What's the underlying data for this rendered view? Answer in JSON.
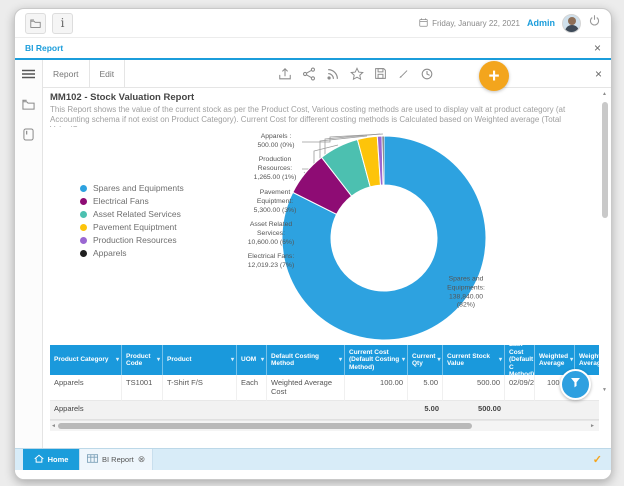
{
  "topbar": {
    "date": "Friday, January 22, 2021",
    "user": "Admin"
  },
  "tab": {
    "title": "BI Report"
  },
  "toolbar": {
    "report": "Report",
    "edit": "Edit"
  },
  "report": {
    "title": "MM102 - Stock Valuation Report",
    "description": "This Report shows the value of the current stock as per the Product Cost,  Various costing methods are used to display valt at product category (at Accounting schema if not exist on Product Category). Current Cost for different costing methods is Calculated based on Weighted average (Total Value/Curr"
  },
  "chart_data": {
    "type": "pie",
    "donut": true,
    "title": "",
    "legend_position": "left",
    "series": [
      {
        "name": "Spares and Equipments",
        "value": 138840.0,
        "percent": "82%",
        "color": "#2da2e0",
        "label": "Spares and\nEquipments:\n138,840.00\n(82%)"
      },
      {
        "name": "Electrical Fans",
        "value": 12019.23,
        "percent": "7%",
        "color": "#8e0c74",
        "label": "Electrical Fans:\n12,019.23 (7%)"
      },
      {
        "name": "Asset Related Services",
        "value": 10600.0,
        "percent": "6%",
        "color": "#4cc0b0",
        "label": "Asset Related\nServices:\n10,600.00 (6%)"
      },
      {
        "name": "Pavement Equiptment",
        "value": 5300.0,
        "percent": "3%",
        "color": "#fdc40a",
        "label": "Pavement\nEquiptment:\n5,300.00 (3%)"
      },
      {
        "name": "Production Resources",
        "value": 1265.0,
        "percent": "1%",
        "color": "#9a67d2",
        "label": "Production\nResources:\n1,265.00 (1%)"
      },
      {
        "name": "Apparels",
        "value": 500.0,
        "percent": "0%",
        "color": "#1f1f1f",
        "label": "Apparels :\n500.00 (0%)"
      }
    ]
  },
  "table": {
    "columns": [
      "Product Category",
      "Product Code",
      "Product",
      "UOM",
      "Default Costing Method",
      "Current Cost (Default Costing Method)",
      "Current Qty",
      "Current Stock Value",
      "Last Cost (Default C Method)",
      "Weighted Average",
      "Weighted Average"
    ],
    "rows": [
      [
        "Apparels",
        "TS1001",
        "T-Shirt F/S",
        "Each",
        "Weighted Average Cost",
        "100.00",
        "5.00",
        "500.00",
        "02/09/20",
        "100.00",
        ""
      ]
    ],
    "summary": [
      "Apparels",
      "",
      "",
      "",
      "",
      "",
      "5.00",
      "500.00",
      "",
      "",
      ""
    ]
  },
  "taskbar": {
    "home": "Home",
    "bi_report": "BI Report"
  },
  "icons": {
    "close": "×",
    "tab_close": "⊗",
    "check": "✓",
    "caret": "▾",
    "up": "▲",
    "down": "▼",
    "left": "◄",
    "right": "►",
    "plus": "+",
    "info": "i"
  }
}
